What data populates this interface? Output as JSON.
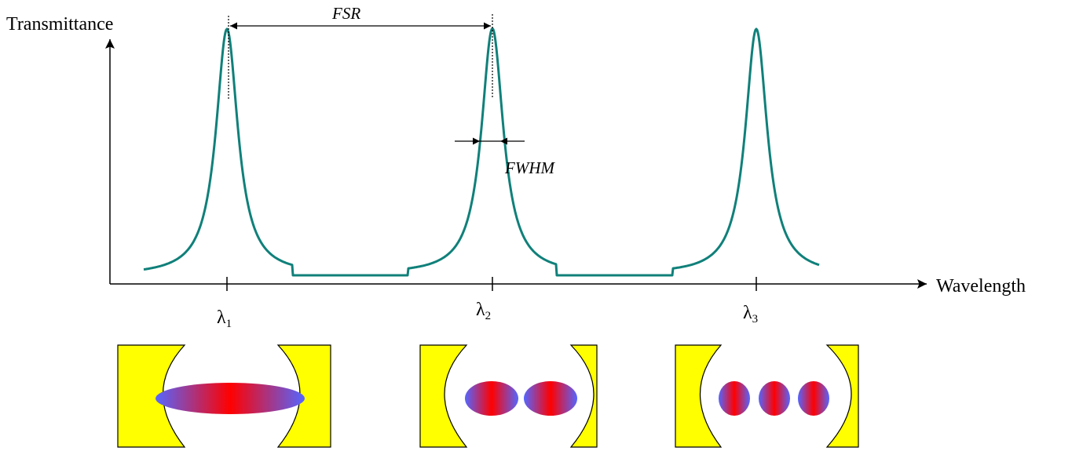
{
  "axes": {
    "y_label": "Transmittance",
    "x_label": "Wavelength"
  },
  "annotations": {
    "fsr": "FSR",
    "fwhm": "FWHM"
  },
  "peaks": [
    {
      "symbol": "λ",
      "index": "1",
      "antinodes": 1
    },
    {
      "symbol": "λ",
      "index": "2",
      "antinodes": 2
    },
    {
      "symbol": "λ",
      "index": "3",
      "antinodes": 3
    }
  ],
  "colors": {
    "curve": "#10807a",
    "mirror": "#ffff00",
    "mode_center": "#ff0000",
    "mode_edge": "#5566ff"
  }
}
